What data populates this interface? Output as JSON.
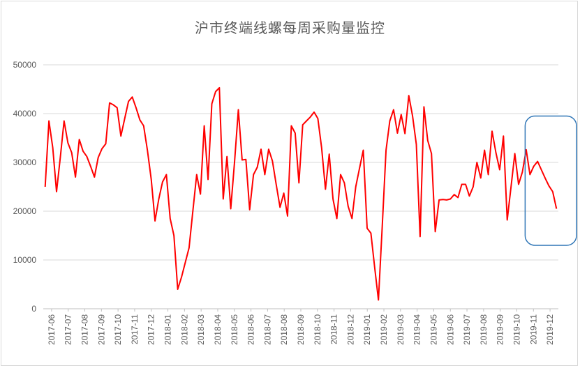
{
  "chart_data": {
    "type": "line",
    "title": "沪市终端线螺每周采购量监控",
    "xlabel": "",
    "ylabel": "",
    "ylim": [
      0,
      50000
    ],
    "yticks": [
      0,
      10000,
      20000,
      30000,
      40000,
      50000
    ],
    "grid": true,
    "legend": "none",
    "line_color": "#ff0000",
    "highlight_color": "#2e75b6",
    "x_tick_labels": [
      "2017-06",
      "2017-07",
      "2017-08",
      "2017-09",
      "2017-10",
      "2017-11",
      "2017-12",
      "2018-01",
      "2018-02",
      "2018-03",
      "2018-04",
      "2018-05",
      "2018-06",
      "2018-07",
      "2018-08",
      "2018-09",
      "2018-10",
      "2018-11",
      "2018-12",
      "2019-01",
      "2019-02",
      "2019-03",
      "2019-04",
      "2019-05",
      "2019-06",
      "2019-07",
      "2019-08",
      "2019-09",
      "2019-10",
      "2019-11",
      "2019-12"
    ],
    "highlight_range": {
      "x": [
        "2019-10",
        "2019-12"
      ],
      "y": [
        13000,
        39500
      ]
    },
    "series": [
      {
        "values": [
          25000,
          38500,
          33000,
          24000,
          31000,
          38500,
          34000,
          32000,
          27000,
          34700,
          32300,
          31200,
          29200,
          27000,
          31000,
          32800,
          33800,
          42200,
          41800,
          41200,
          35400,
          39000,
          42500,
          43400,
          41200,
          38700,
          37500,
          32500,
          26500,
          18000,
          22500,
          26000,
          27500,
          18500,
          15000,
          4000,
          6500,
          9500,
          12500,
          20000,
          27500,
          23500,
          37500,
          26500,
          42000,
          44500,
          45300,
          22500,
          31200,
          20500,
          30000,
          40800,
          30500,
          30600,
          20300,
          27500,
          29000,
          32700,
          27500,
          32700,
          30300,
          25500,
          20800,
          23700,
          19000,
          37500,
          36000,
          25800,
          37700,
          38500,
          39300,
          40300,
          39000,
          33000,
          24500,
          31700,
          22500,
          18500,
          27500,
          25800,
          21000,
          18500,
          25000,
          28800,
          32500,
          16500,
          15500,
          8500,
          1800,
          17000,
          32500,
          38500,
          40800,
          36000,
          39800,
          35900,
          43700,
          39500,
          33700,
          14800,
          41400,
          34500,
          31800,
          15800,
          22300,
          22400,
          22300,
          22500,
          23400,
          22800,
          25500,
          25500,
          23100,
          25000,
          30000,
          26800,
          32500,
          27500,
          36400,
          32000,
          28500,
          35400,
          18200,
          25000,
          31800,
          25500,
          28000,
          32600,
          27500,
          29200,
          30200,
          28500,
          26800,
          25200,
          24000,
          20500
        ]
      }
    ]
  }
}
